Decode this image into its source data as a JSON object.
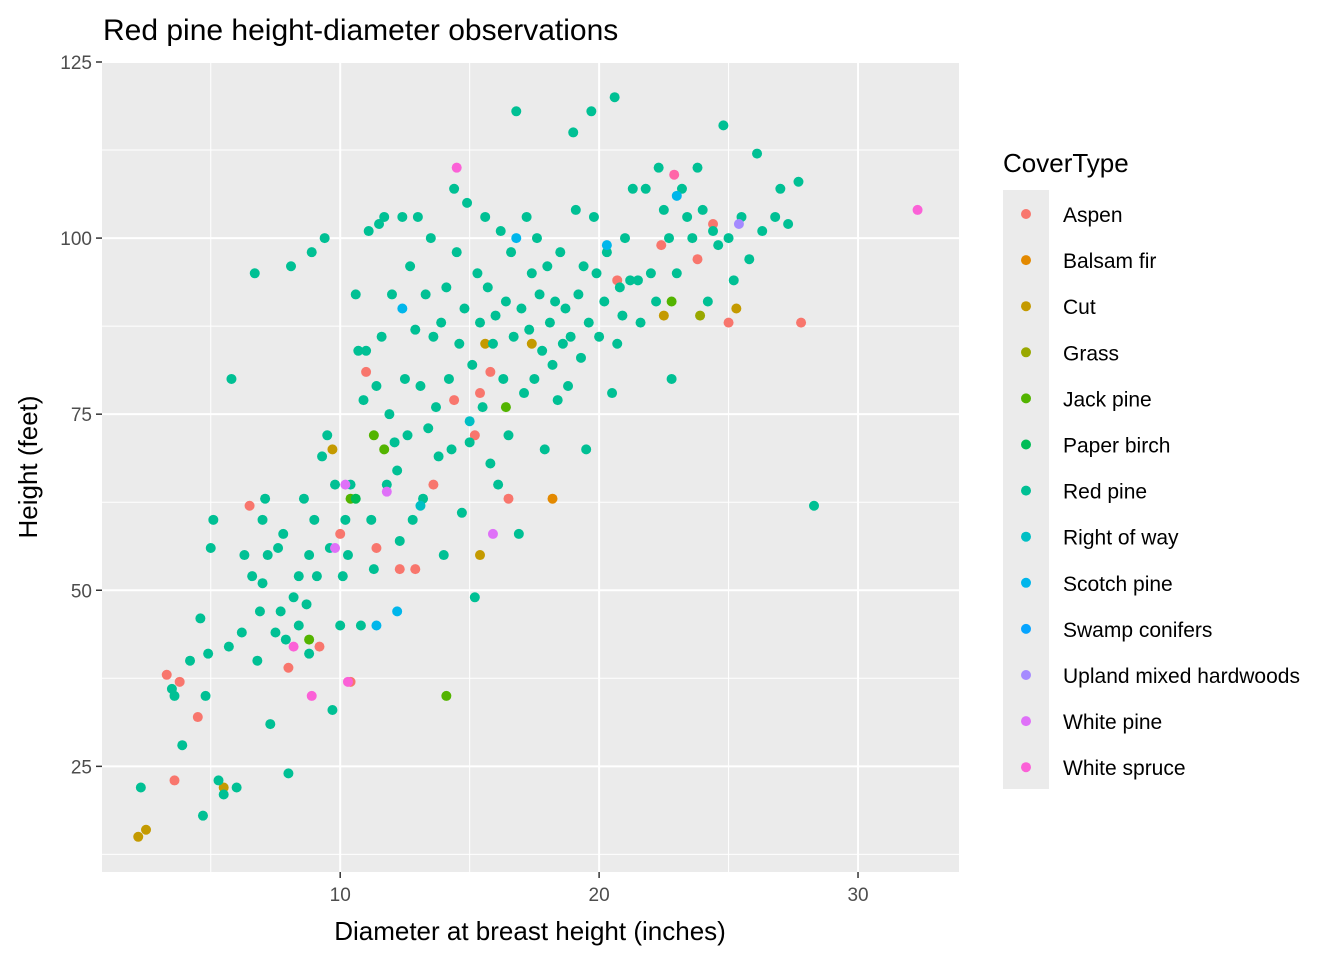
{
  "chart_data": {
    "type": "scatter",
    "title": "Red pine height-diameter observations",
    "xlabel": "Diameter at breast height (inches)",
    "ylabel": "Height (feet)",
    "xlim": [
      0.8,
      33.9
    ],
    "ylim": [
      10,
      125
    ],
    "xticks": [
      10,
      20,
      30
    ],
    "xtick_labels": [
      "10",
      "20",
      "30"
    ],
    "yticks": [
      25,
      50,
      75,
      100,
      125
    ],
    "ytick_labels": [
      "25",
      "50",
      "75",
      "100",
      "125"
    ],
    "grid": true,
    "background": "#EBEBEB",
    "legend": {
      "title": "CoverType",
      "placement": "right"
    },
    "series": [
      {
        "name": "Aspen",
        "color": "#F8766D",
        "points": [
          [
            3.3,
            38
          ],
          [
            3.6,
            23
          ],
          [
            3.8,
            37
          ],
          [
            4.5,
            32
          ],
          [
            6.5,
            62
          ],
          [
            8.0,
            39
          ],
          [
            9.2,
            42
          ],
          [
            10.0,
            58
          ],
          [
            10.4,
            37
          ],
          [
            11.0,
            81
          ],
          [
            11.4,
            56
          ],
          [
            12.3,
            53
          ],
          [
            12.9,
            53
          ],
          [
            13.6,
            65
          ],
          [
            14.4,
            77
          ],
          [
            15.2,
            72
          ],
          [
            15.4,
            78
          ],
          [
            15.8,
            81
          ],
          [
            16.5,
            63
          ],
          [
            20.7,
            94
          ],
          [
            22.4,
            99
          ],
          [
            23.8,
            97
          ],
          [
            24.4,
            102
          ],
          [
            25.0,
            88
          ],
          [
            27.8,
            88
          ]
        ]
      },
      {
        "name": "Balsam fir",
        "color": "#E38900",
        "points": [
          [
            18.2,
            63
          ]
        ]
      },
      {
        "name": "Cut",
        "color": "#C49A00",
        "points": [
          [
            2.2,
            15
          ],
          [
            2.5,
            16
          ],
          [
            5.5,
            22
          ],
          [
            9.7,
            70
          ],
          [
            15.4,
            55
          ],
          [
            15.6,
            85
          ],
          [
            17.4,
            85
          ],
          [
            22.5,
            89
          ],
          [
            25.3,
            90
          ]
        ]
      },
      {
        "name": "Grass",
        "color": "#99A800",
        "points": [
          [
            23.9,
            89
          ]
        ]
      },
      {
        "name": "Jack pine",
        "color": "#53B400",
        "points": [
          [
            8.8,
            43
          ],
          [
            10.4,
            63
          ],
          [
            11.3,
            72
          ],
          [
            11.7,
            70
          ],
          [
            14.1,
            35
          ],
          [
            16.4,
            76
          ],
          [
            22.8,
            91
          ]
        ]
      },
      {
        "name": "Paper birch",
        "color": "#00BC56",
        "points": [
          [
            10.6,
            63
          ]
        ]
      },
      {
        "name": "Red pine",
        "color": "#00C094",
        "points": [
          [
            2.3,
            22
          ],
          [
            3.5,
            36
          ],
          [
            3.6,
            35
          ],
          [
            3.9,
            28
          ],
          [
            4.2,
            40
          ],
          [
            4.6,
            46
          ],
          [
            4.7,
            18
          ],
          [
            4.8,
            35
          ],
          [
            4.9,
            41
          ],
          [
            5.0,
            56
          ],
          [
            5.1,
            60
          ],
          [
            5.3,
            23
          ],
          [
            5.5,
            21
          ],
          [
            5.7,
            42
          ],
          [
            5.8,
            80
          ],
          [
            6.0,
            22
          ],
          [
            6.2,
            44
          ],
          [
            6.3,
            55
          ],
          [
            6.6,
            52
          ],
          [
            6.7,
            95
          ],
          [
            6.8,
            40
          ],
          [
            6.9,
            47
          ],
          [
            7.0,
            51
          ],
          [
            7.0,
            60
          ],
          [
            7.1,
            63
          ],
          [
            7.2,
            55
          ],
          [
            7.3,
            31
          ],
          [
            7.5,
            44
          ],
          [
            7.6,
            56
          ],
          [
            7.7,
            47
          ],
          [
            7.8,
            58
          ],
          [
            7.9,
            43
          ],
          [
            8.0,
            24
          ],
          [
            8.1,
            96
          ],
          [
            8.2,
            49
          ],
          [
            8.4,
            45
          ],
          [
            8.4,
            52
          ],
          [
            8.6,
            63
          ],
          [
            8.7,
            48
          ],
          [
            8.8,
            55
          ],
          [
            8.8,
            41
          ],
          [
            8.9,
            98
          ],
          [
            9.0,
            60
          ],
          [
            9.1,
            52
          ],
          [
            9.3,
            69
          ],
          [
            9.4,
            100
          ],
          [
            9.5,
            72
          ],
          [
            9.6,
            56
          ],
          [
            9.7,
            33
          ],
          [
            9.8,
            65
          ],
          [
            10.0,
            45
          ],
          [
            10.1,
            52
          ],
          [
            10.2,
            60
          ],
          [
            10.3,
            55
          ],
          [
            10.4,
            65
          ],
          [
            10.6,
            92
          ],
          [
            10.7,
            84
          ],
          [
            10.8,
            45
          ],
          [
            10.9,
            77
          ],
          [
            11.0,
            84
          ],
          [
            11.1,
            101
          ],
          [
            11.2,
            60
          ],
          [
            11.3,
            53
          ],
          [
            11.4,
            79
          ],
          [
            11.5,
            102
          ],
          [
            11.6,
            86
          ],
          [
            11.7,
            103
          ],
          [
            11.8,
            65
          ],
          [
            11.9,
            75
          ],
          [
            12.0,
            92
          ],
          [
            12.1,
            71
          ],
          [
            12.2,
            67
          ],
          [
            12.3,
            57
          ],
          [
            12.4,
            103
          ],
          [
            12.5,
            80
          ],
          [
            12.6,
            72
          ],
          [
            12.7,
            96
          ],
          [
            12.8,
            60
          ],
          [
            12.9,
            87
          ],
          [
            13.0,
            103
          ],
          [
            13.1,
            79
          ],
          [
            13.2,
            63
          ],
          [
            13.3,
            92
          ],
          [
            13.4,
            73
          ],
          [
            13.5,
            100
          ],
          [
            13.6,
            86
          ],
          [
            13.7,
            76
          ],
          [
            13.8,
            69
          ],
          [
            13.9,
            88
          ],
          [
            14.0,
            55
          ],
          [
            14.1,
            93
          ],
          [
            14.2,
            80
          ],
          [
            14.3,
            70
          ],
          [
            14.4,
            107
          ],
          [
            14.5,
            98
          ],
          [
            14.6,
            85
          ],
          [
            14.7,
            61
          ],
          [
            14.8,
            90
          ],
          [
            14.9,
            105
          ],
          [
            15.0,
            71
          ],
          [
            15.1,
            82
          ],
          [
            15.2,
            49
          ],
          [
            15.3,
            95
          ],
          [
            15.4,
            88
          ],
          [
            15.5,
            76
          ],
          [
            15.6,
            103
          ],
          [
            15.7,
            93
          ],
          [
            15.8,
            68
          ],
          [
            15.9,
            85
          ],
          [
            16.0,
            89
          ],
          [
            16.1,
            65
          ],
          [
            16.2,
            101
          ],
          [
            16.3,
            80
          ],
          [
            16.4,
            91
          ],
          [
            16.5,
            72
          ],
          [
            16.6,
            98
          ],
          [
            16.7,
            86
          ],
          [
            16.8,
            118
          ],
          [
            16.9,
            58
          ],
          [
            17.0,
            90
          ],
          [
            17.1,
            78
          ],
          [
            17.2,
            103
          ],
          [
            17.3,
            87
          ],
          [
            17.4,
            95
          ],
          [
            17.5,
            80
          ],
          [
            17.6,
            100
          ],
          [
            17.7,
            92
          ],
          [
            17.8,
            84
          ],
          [
            17.9,
            70
          ],
          [
            18.0,
            96
          ],
          [
            18.1,
            88
          ],
          [
            18.2,
            82
          ],
          [
            18.3,
            91
          ],
          [
            18.4,
            77
          ],
          [
            18.5,
            98
          ],
          [
            18.6,
            85
          ],
          [
            18.7,
            90
          ],
          [
            18.8,
            79
          ],
          [
            18.9,
            86
          ],
          [
            19.0,
            115
          ],
          [
            19.1,
            104
          ],
          [
            19.2,
            92
          ],
          [
            19.3,
            83
          ],
          [
            19.4,
            96
          ],
          [
            19.5,
            70
          ],
          [
            19.6,
            88
          ],
          [
            19.7,
            118
          ],
          [
            19.8,
            103
          ],
          [
            19.9,
            95
          ],
          [
            20.0,
            86
          ],
          [
            20.2,
            91
          ],
          [
            20.3,
            98
          ],
          [
            20.5,
            78
          ],
          [
            20.6,
            120
          ],
          [
            20.7,
            85
          ],
          [
            20.8,
            93
          ],
          [
            20.9,
            89
          ],
          [
            21.0,
            100
          ],
          [
            21.2,
            94
          ],
          [
            21.3,
            107
          ],
          [
            21.5,
            94
          ],
          [
            21.6,
            88
          ],
          [
            21.8,
            107
          ],
          [
            22.0,
            95
          ],
          [
            22.2,
            91
          ],
          [
            22.3,
            110
          ],
          [
            22.5,
            104
          ],
          [
            22.7,
            100
          ],
          [
            22.8,
            80
          ],
          [
            23.0,
            95
          ],
          [
            23.2,
            107
          ],
          [
            23.4,
            103
          ],
          [
            23.6,
            100
          ],
          [
            23.8,
            110
          ],
          [
            24.0,
            104
          ],
          [
            24.2,
            91
          ],
          [
            24.4,
            101
          ],
          [
            24.6,
            99
          ],
          [
            24.8,
            116
          ],
          [
            25.0,
            100
          ],
          [
            25.2,
            94
          ],
          [
            25.5,
            103
          ],
          [
            25.8,
            97
          ],
          [
            26.1,
            112
          ],
          [
            26.3,
            101
          ],
          [
            26.8,
            103
          ],
          [
            27.0,
            107
          ],
          [
            27.3,
            102
          ],
          [
            27.7,
            108
          ],
          [
            28.3,
            62
          ]
        ]
      },
      {
        "name": "Right of way",
        "color": "#00BFC4",
        "points": [
          [
            13.1,
            62
          ],
          [
            15.0,
            74
          ]
        ]
      },
      {
        "name": "Scotch pine",
        "color": "#00B6EB",
        "points": [
          [
            11.4,
            45
          ],
          [
            12.2,
            47
          ],
          [
            12.4,
            90
          ],
          [
            16.8,
            100
          ],
          [
            20.3,
            99
          ],
          [
            23.0,
            106
          ]
        ]
      },
      {
        "name": "Swamp conifers",
        "color": "#06A4FF",
        "points": []
      },
      {
        "name": "Upland mixed hardwoods",
        "color": "#A58AFF",
        "points": [
          [
            25.4,
            102
          ]
        ]
      },
      {
        "name": "White pine",
        "color": "#DF70F8",
        "points": [
          [
            9.8,
            56
          ],
          [
            10.2,
            65
          ],
          [
            11.8,
            64
          ],
          [
            15.9,
            58
          ]
        ]
      },
      {
        "name": "White spruce",
        "color": "#FB61D7",
        "points": [
          [
            8.2,
            42
          ],
          [
            8.9,
            35
          ],
          [
            10.3,
            37
          ],
          [
            14.5,
            110
          ],
          [
            32.3,
            104
          ]
        ]
      },
      {
        "name": "",
        "color": "#FF66A8",
        "points": [
          [
            22.9,
            109
          ]
        ]
      }
    ]
  }
}
